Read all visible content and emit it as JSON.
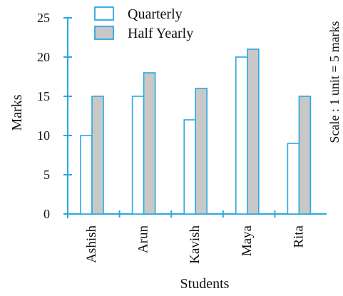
{
  "chart_data": {
    "type": "bar",
    "title": "",
    "xlabel": "Students",
    "ylabel": "Marks",
    "side_note": "Scale : 1 unit = 5 marks",
    "categories": [
      "Ashish",
      "Arun",
      "Kavish",
      "Maya",
      "Rita"
    ],
    "series": [
      {
        "name": "Quarterly",
        "values": [
          10,
          15,
          12,
          20,
          9
        ],
        "fill": "#ffffff",
        "stroke": "#29a8e0"
      },
      {
        "name": "Half Yearly",
        "values": [
          15,
          18,
          16,
          21,
          15
        ],
        "fill": "#c8c8c8",
        "stroke": "#29a8e0"
      }
    ],
    "y_ticks": [
      "0",
      "5",
      "10",
      "15",
      "20",
      "25"
    ],
    "ylim": [
      0,
      25
    ],
    "grid": false,
    "legend_position": "top",
    "axis_color": "#29a8e0"
  }
}
